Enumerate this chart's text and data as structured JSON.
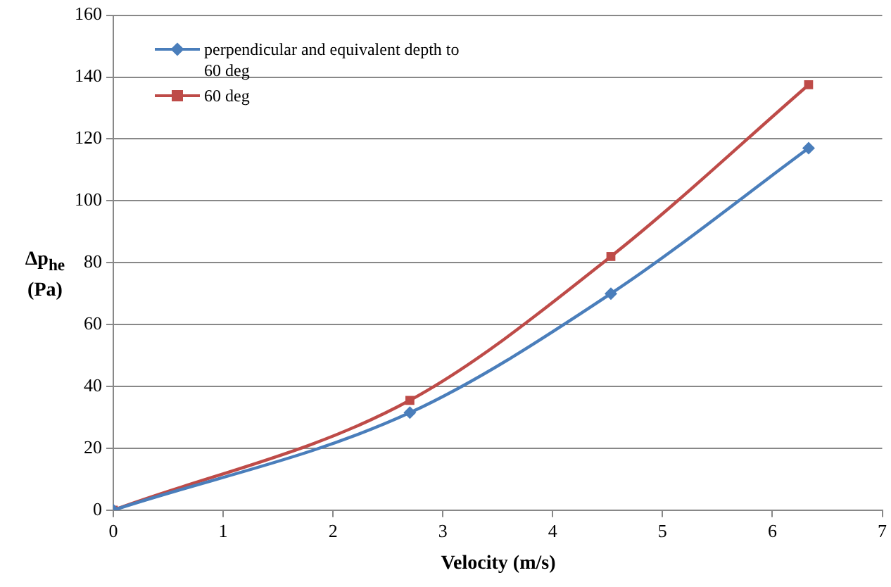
{
  "chart_data": {
    "type": "line",
    "xlabel": "Velocity (m/s)",
    "ylabel": "Δp$_{he}$ (Pa)",
    "x": [
      0,
      2.7,
      4.53,
      6.33
    ],
    "series": [
      {
        "name": "perpendicular and equivalent depth to 60 deg",
        "color": "#4a7ebb",
        "marker": "diamond",
        "values": [
          0,
          31.5,
          70,
          117
        ]
      },
      {
        "name": "60 deg",
        "color": "#be4b48",
        "marker": "square",
        "values": [
          0,
          35.5,
          82,
          137.5
        ]
      }
    ],
    "xlim": [
      0,
      7
    ],
    "xticks": [
      0,
      1,
      2,
      3,
      4,
      5,
      6,
      7
    ],
    "ylim": [
      0,
      160
    ],
    "yticks": [
      0,
      20,
      40,
      60,
      80,
      100,
      120,
      140,
      160
    ],
    "grid": "y",
    "legend": "top left",
    "line_style": "solid"
  }
}
